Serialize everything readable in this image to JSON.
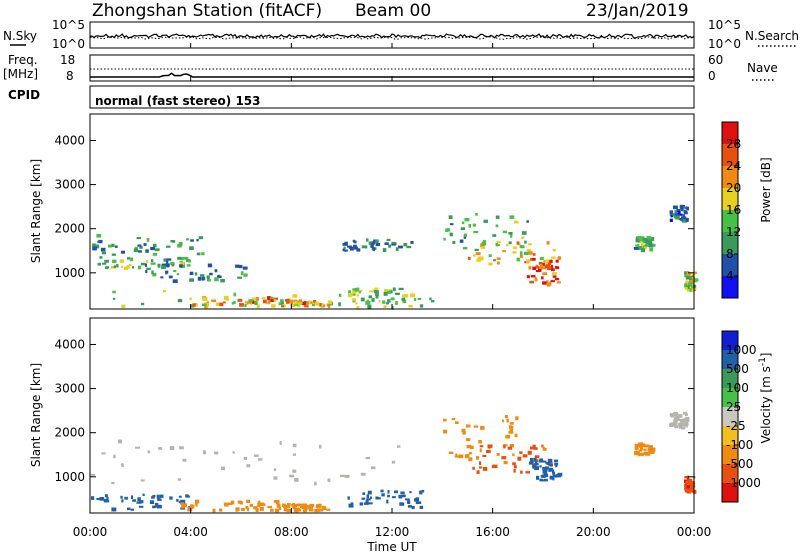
{
  "header": {
    "station": "Zhongshan Station (fitACF)",
    "beam": "Beam 00",
    "date": "23/Jan/2019"
  },
  "nsky_panel": {
    "left_label": "N.Sky",
    "right_label": "N.Search",
    "left_ticks": [
      "10^5",
      "10^0"
    ],
    "right_ticks": [
      "10^5",
      "10^0"
    ]
  },
  "freq_panel": {
    "left_label_1": "Freq.",
    "left_label_2": "[MHz]",
    "right_label": "Nave",
    "left_ticks": [
      "18",
      "8"
    ],
    "right_ticks": [
      "60",
      "0"
    ]
  },
  "cpid": {
    "label": "CPID",
    "text": "normal (fast stereo) 153"
  },
  "colors": {
    "power_scale": [
      "#1010f0",
      "#2050a8",
      "#3a9a5a",
      "#48c048",
      "#e8d020",
      "#f08a10",
      "#e85010",
      "#e01010"
    ],
    "velocity_scale": [
      "#1020d0",
      "#2060a8",
      "#3a9a5a",
      "#48c048",
      "#c8c8c0",
      "#f0c020",
      "#f08a10",
      "#e85010",
      "#e01010"
    ],
    "ground_scatter": "#b4b4ac"
  },
  "chart_data": [
    {
      "type": "heatmap",
      "name": "power",
      "ylabel": "Slant Range [km]",
      "xlabel": "",
      "yticks": [
        "1000",
        "2000",
        "3000",
        "4000"
      ],
      "ylim": [
        180,
        4600
      ],
      "colorbar_label": "Power [dB]",
      "colorbar_ticks": [
        "4",
        "8",
        "12",
        "16",
        "20",
        "24",
        "28"
      ],
      "colorbar_range": [
        0,
        32
      ],
      "regions": [
        {
          "t0": 0.0,
          "t1": 4.5,
          "r0": 1400,
          "r1": 1850,
          "value": 9
        },
        {
          "t0": 0.3,
          "t1": 4.0,
          "r0": 1100,
          "r1": 1350,
          "value": 13
        },
        {
          "t0": 2.0,
          "t1": 7.5,
          "r0": 800,
          "r1": 1200,
          "value": 10
        },
        {
          "t0": 0.0,
          "t1": 13.8,
          "r0": 200,
          "r1": 600,
          "value": 14
        },
        {
          "t0": 4.0,
          "t1": 7.5,
          "r0": 230,
          "r1": 450,
          "value": 22
        },
        {
          "t0": 7.5,
          "t1": 9.5,
          "r0": 230,
          "r1": 380,
          "value": 21
        },
        {
          "t0": 10.0,
          "t1": 12.8,
          "r0": 1500,
          "r1": 1750,
          "value": 8
        },
        {
          "t0": 10.2,
          "t1": 12.5,
          "r0": 300,
          "r1": 650,
          "value": 15
        },
        {
          "t0": 14.0,
          "t1": 17.5,
          "r0": 1500,
          "r1": 2350,
          "value": 12
        },
        {
          "t0": 15.0,
          "t1": 18.4,
          "r0": 1200,
          "r1": 1700,
          "value": 20
        },
        {
          "t0": 17.3,
          "t1": 18.6,
          "r0": 700,
          "r1": 1400,
          "value": 27
        },
        {
          "t0": 21.6,
          "t1": 22.3,
          "r0": 1500,
          "r1": 1800,
          "value": 12
        },
        {
          "t0": 23.0,
          "t1": 23.7,
          "r0": 2150,
          "r1": 2500,
          "value": 6
        },
        {
          "t0": 23.6,
          "t1": 24.0,
          "r0": 600,
          "r1": 1000,
          "value": 16
        }
      ]
    },
    {
      "type": "heatmap",
      "name": "velocity",
      "ylabel": "Slant Range [km]",
      "xlabel": "Time UT",
      "xticks": [
        "00:00",
        "04:00",
        "08:00",
        "12:00",
        "16:00",
        "20:00",
        "00:00"
      ],
      "xlim": [
        0,
        24
      ],
      "yticks": [
        "1000",
        "2000",
        "3000",
        "4000"
      ],
      "ylim": [
        180,
        4600
      ],
      "colorbar_label": "Velocity [m s-1]",
      "colorbar_ticks": [
        "1000",
        "500",
        "100",
        "25",
        "-25",
        "-100",
        "-500",
        "-1000"
      ],
      "regions": [
        {
          "t0": 0.0,
          "t1": 12.8,
          "r0": 800,
          "r1": 1850,
          "value": 0,
          "ground_scatter": true
        },
        {
          "t0": 0.0,
          "t1": 4.0,
          "r0": 250,
          "r1": 600,
          "value": 300
        },
        {
          "t0": 3.5,
          "t1": 7.5,
          "r0": 230,
          "r1": 450,
          "value": -300
        },
        {
          "t0": 7.5,
          "t1": 9.5,
          "r0": 230,
          "r1": 380,
          "value": -200
        },
        {
          "t0": 10.2,
          "t1": 13.2,
          "r0": 300,
          "r1": 700,
          "value": 150
        },
        {
          "t0": 14.0,
          "t1": 17.0,
          "r0": 1400,
          "r1": 2400,
          "value": -300
        },
        {
          "t0": 15.0,
          "t1": 18.3,
          "r0": 1100,
          "r1": 1700,
          "value": -600
        },
        {
          "t0": 17.4,
          "t1": 18.6,
          "r0": 900,
          "r1": 1400,
          "value": 200
        },
        {
          "t0": 21.6,
          "t1": 22.3,
          "r0": 1500,
          "r1": 1750,
          "value": -150
        },
        {
          "t0": 23.0,
          "t1": 23.7,
          "r0": 2100,
          "r1": 2450,
          "value": 0,
          "ground_scatter": true
        },
        {
          "t0": 23.6,
          "t1": 24.0,
          "r0": 650,
          "r1": 1000,
          "value": -900
        }
      ]
    }
  ]
}
